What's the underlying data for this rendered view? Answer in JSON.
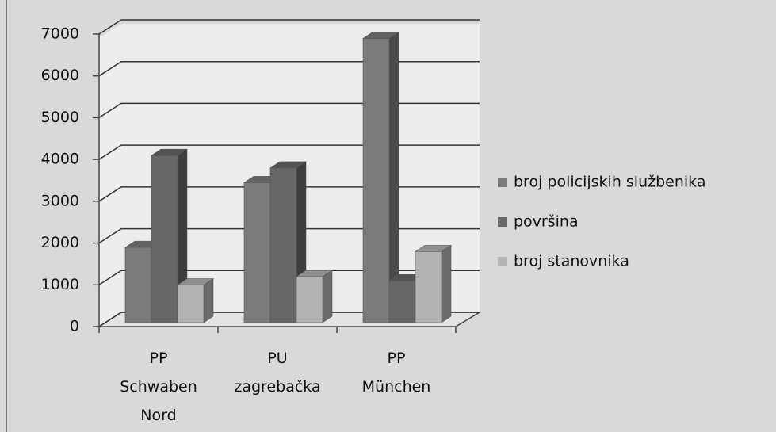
{
  "chart_data": {
    "type": "bar3d",
    "categories": [
      "PP Schwaben Nord",
      "PU zagrebačka",
      "PP München"
    ],
    "series": [
      {
        "name": "broj policijskih službenika",
        "color": "#7b7b7b",
        "values": [
          1800,
          3350,
          6800
        ]
      },
      {
        "name": "površina",
        "color": "#676767",
        "values": [
          4000,
          3700,
          1000
        ]
      },
      {
        "name": "broj stanovnika",
        "color": "#b3b3b3",
        "values": [
          900,
          1100,
          1700
        ]
      }
    ],
    "ylim": [
      0,
      7000
    ],
    "yticks": [
      0,
      1000,
      2000,
      3000,
      4000,
      5000,
      6000,
      7000
    ],
    "grid": true,
    "legend": "right"
  }
}
